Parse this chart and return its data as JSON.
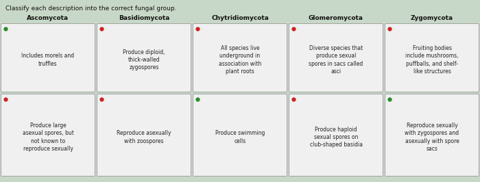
{
  "title": "Classify each description into the correct fungal group.",
  "columns": [
    "Ascomycota",
    "Basidiomycota",
    "Chytridiomycota",
    "Glomeromycota",
    "Zygomycota"
  ],
  "cells": [
    [
      {
        "text": "Includes morels and\ntruffles",
        "dot": "green"
      },
      {
        "text": "Produce large\nasexual spores, but\nnot known to\nreproduce sexually",
        "dot": "red"
      }
    ],
    [
      {
        "text": "Produce diploid,\nthick-walled\nzygospores",
        "dot": "red"
      },
      {
        "text": "Reproduce asexually\nwith zoospores",
        "dot": "red"
      }
    ],
    [
      {
        "text": "All species live\nunderground in\nassociation with\nplant roots",
        "dot": "red"
      },
      {
        "text": "Produce swimming\ncells",
        "dot": "green"
      }
    ],
    [
      {
        "text": "Diverse species that\nproduce sexual\nspores in sacs called\nasci",
        "dot": "red"
      },
      {
        "text": "Produce haploid\nsexual spores on\nclub-shaped basidia",
        "dot": "red"
      }
    ],
    [
      {
        "text": "Fruiting bodies\ninclude mushrooms,\npuffballs, and shelf-\nlike structures",
        "dot": "red"
      },
      {
        "text": "Reproduce sexually\nwith zygospores and\nasexually with spore\nsacs",
        "dot": "green"
      }
    ]
  ],
  "bg_color": "#c8d8c8",
  "cell_bg": "#f0f0f0",
  "title_color": "#111111",
  "header_color": "#111111",
  "text_color": "#222222",
  "dot_green": "#2a8a2a",
  "dot_red": "#cc2222",
  "fig_width": 7.0,
  "fig_height": 2.66
}
